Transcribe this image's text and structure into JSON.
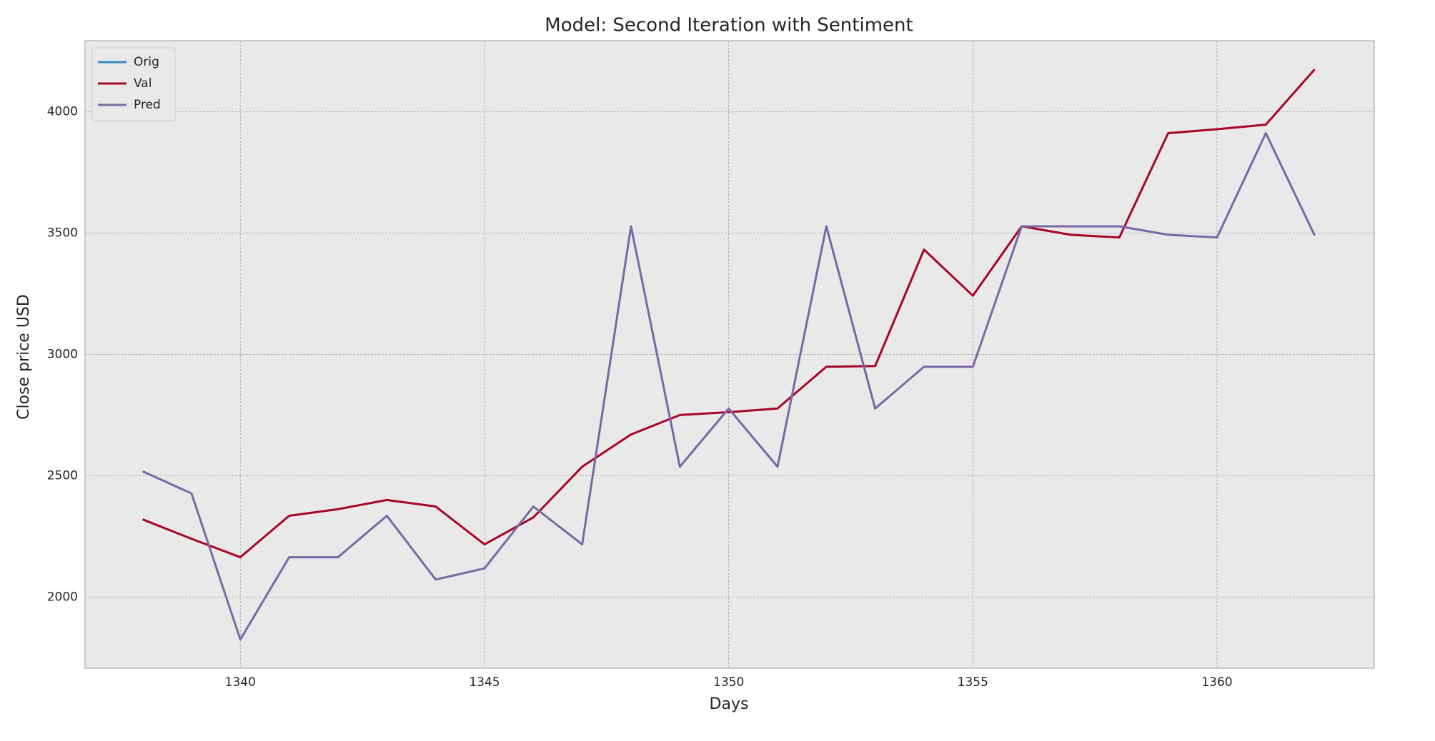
{
  "chart_data": {
    "type": "line",
    "title": "Model: Second Iteration with Sentiment",
    "xlabel": "Days",
    "ylabel": "Close price USD",
    "x": [
      1338,
      1339,
      1340,
      1341,
      1342,
      1343,
      1344,
      1345,
      1346,
      1347,
      1348,
      1349,
      1350,
      1351,
      1352,
      1353,
      1354,
      1355,
      1356,
      1357,
      1358,
      1359,
      1360,
      1361,
      1362
    ],
    "series": [
      {
        "name": "Orig",
        "color": "#348abd",
        "values": [
          null,
          null,
          null,
          null,
          null,
          null,
          null,
          null,
          null,
          null,
          null,
          null,
          null,
          null,
          null,
          null,
          null,
          null,
          null,
          null,
          null,
          null,
          null,
          null,
          null
        ]
      },
      {
        "name": "Val",
        "color": "#a60628",
        "values": [
          2320,
          2240,
          2164,
          2335,
          2362,
          2400,
          2373,
          2217,
          2328,
          2537,
          2670,
          2750,
          2762,
          2777,
          2949,
          2952,
          3432,
          3242,
          3528,
          3493,
          3482,
          3912,
          3928,
          3947,
          4175
        ]
      },
      {
        "name": "Pred",
        "color": "#7a68a6",
        "values": [
          2518,
          2427,
          1825,
          2164,
          2164,
          2335,
          2072,
          2118,
          2373,
          2217,
          3528,
          2537,
          2777,
          2537,
          3528,
          2777,
          2949,
          2949,
          3528,
          3528,
          3528,
          3493,
          3482,
          3912,
          3490
        ]
      }
    ],
    "xlim": [
      1336.82,
      1363.22
    ],
    "xticks": [
      1340,
      1345,
      1350,
      1355,
      1360
    ],
    "ylim": [
      1706.7,
      4293
    ],
    "yticks": [
      2000,
      2500,
      3000,
      3500,
      4000
    ],
    "grid": true,
    "legend": "upper left"
  }
}
